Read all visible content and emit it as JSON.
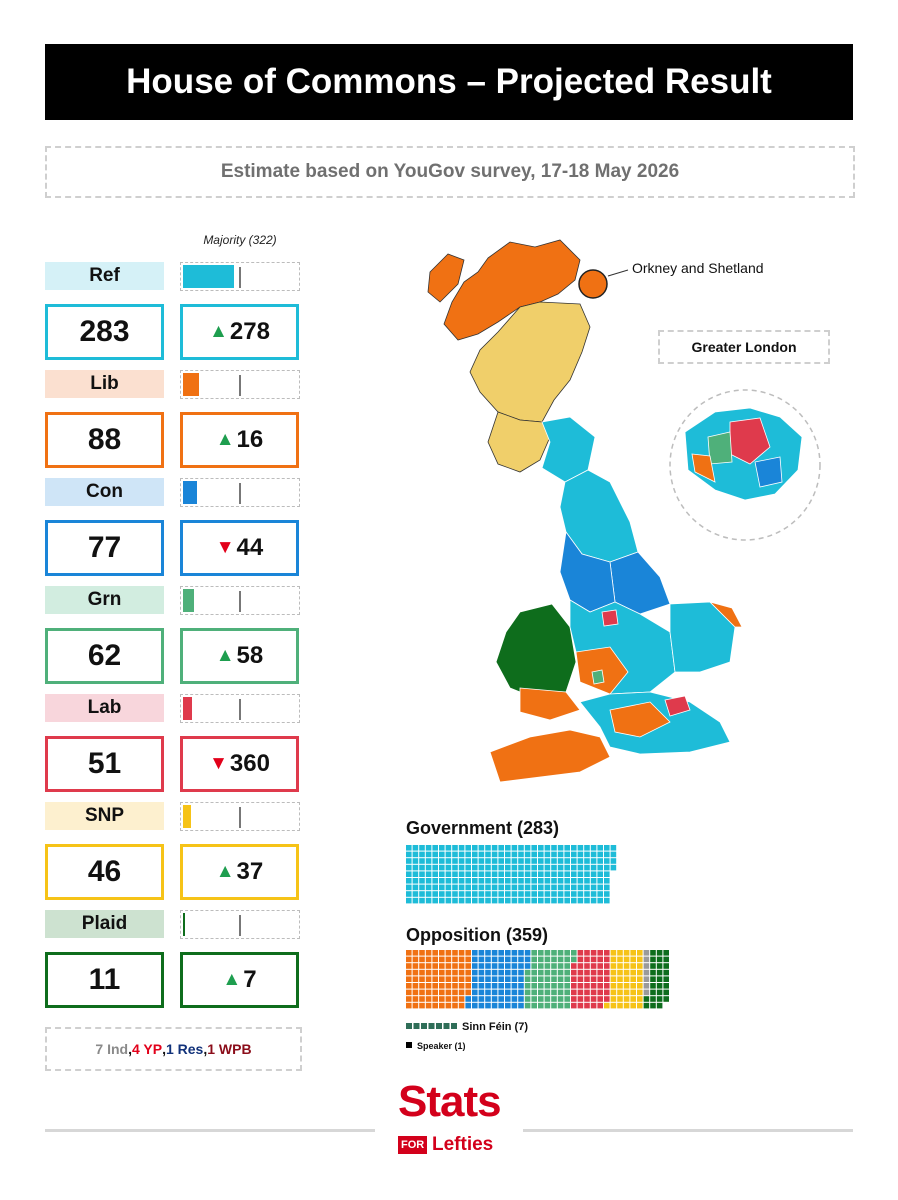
{
  "title": "House of Commons – Projected Result",
  "subtitle": "Estimate based on YouGov survey, 17-18 May 2026",
  "majority_label": "Majority (322)",
  "parties": [
    {
      "name": "Ref",
      "seats": "283",
      "change": "278",
      "direction": "up",
      "seat_fraction_of_majority": 0.879,
      "color": "#1ebcd8",
      "bg": "#d5f1f7"
    },
    {
      "name": "Lib",
      "seats": "88",
      "change": "16",
      "direction": "up",
      "seat_fraction_of_majority": 0.273,
      "color": "#f07113",
      "bg": "#fbe0d0"
    },
    {
      "name": "Con",
      "seats": "77",
      "change": "44",
      "direction": "down",
      "seat_fraction_of_majority": 0.239,
      "color": "#1a85d8",
      "bg": "#cfe5f7"
    },
    {
      "name": "Grn",
      "seats": "62",
      "change": "58",
      "direction": "up",
      "seat_fraction_of_majority": 0.193,
      "color": "#4fb07a",
      "bg": "#d2ede0"
    },
    {
      "name": "Lab",
      "seats": "51",
      "change": "360",
      "direction": "down",
      "seat_fraction_of_majority": 0.158,
      "color": "#df3a4c",
      "bg": "#f8d6dc"
    },
    {
      "name": "SNP",
      "seats": "46",
      "change": "37",
      "direction": "up",
      "seat_fraction_of_majority": 0.143,
      "color": "#f6c317",
      "bg": "#fdf0cf"
    },
    {
      "name": "Plaid",
      "seats": "11",
      "change": "7",
      "direction": "up",
      "seat_fraction_of_majority": 0.034,
      "color": "#0e6d1c",
      "bg": "#cde2d0"
    }
  ],
  "others": {
    "ind": {
      "text": "7 Ind",
      "color": "#8a8a8a"
    },
    "yp": {
      "text": "4 YP",
      "color": "#e2001a"
    },
    "res": {
      "text": "1 Res",
      "color": "#12327a"
    },
    "wpb": {
      "text": "1 WPB",
      "color": "#8b0d1a"
    },
    "sep": ", "
  },
  "map": {
    "orkney_label": "Orkney and Shetland",
    "greater_london_label": "Greater London"
  },
  "chart_data": {
    "type": "bar",
    "title": "House of Commons – Projected Result",
    "categories": [
      "Ref",
      "Lib",
      "Con",
      "Grn",
      "Lab",
      "SNP",
      "Plaid"
    ],
    "values": [
      283,
      88,
      77,
      62,
      51,
      46,
      11
    ],
    "change": [
      278,
      16,
      -44,
      58,
      -360,
      37,
      7
    ],
    "majority": 322,
    "government": {
      "label": "Government (283)",
      "seats": 283,
      "members": [
        {
          "party": "Ref",
          "seats": 283
        }
      ]
    },
    "opposition": {
      "label": "Opposition (359)",
      "seats": 359,
      "members": [
        {
          "party": "Lib",
          "seats": 88
        },
        {
          "party": "Con",
          "seats": 77
        },
        {
          "party": "Grn",
          "seats": 62
        },
        {
          "party": "Lab",
          "seats": 51
        },
        {
          "party": "SNP",
          "seats": 46
        },
        {
          "party": "Ind",
          "seats": 7
        },
        {
          "party": "Plaid",
          "seats": 11
        },
        {
          "party": "Others",
          "seats": 17
        }
      ]
    },
    "other_seats": [
      {
        "label": "Sinn Féin (7)",
        "seats": 7
      },
      {
        "label": "Speaker (1)",
        "seats": 1
      }
    ]
  },
  "logo": {
    "stats": "Stats",
    "for": "FOR",
    "lefties": "Lefties"
  },
  "icons": {
    "up": "▲",
    "down": "▼",
    "hammer_sickle": "☭"
  }
}
